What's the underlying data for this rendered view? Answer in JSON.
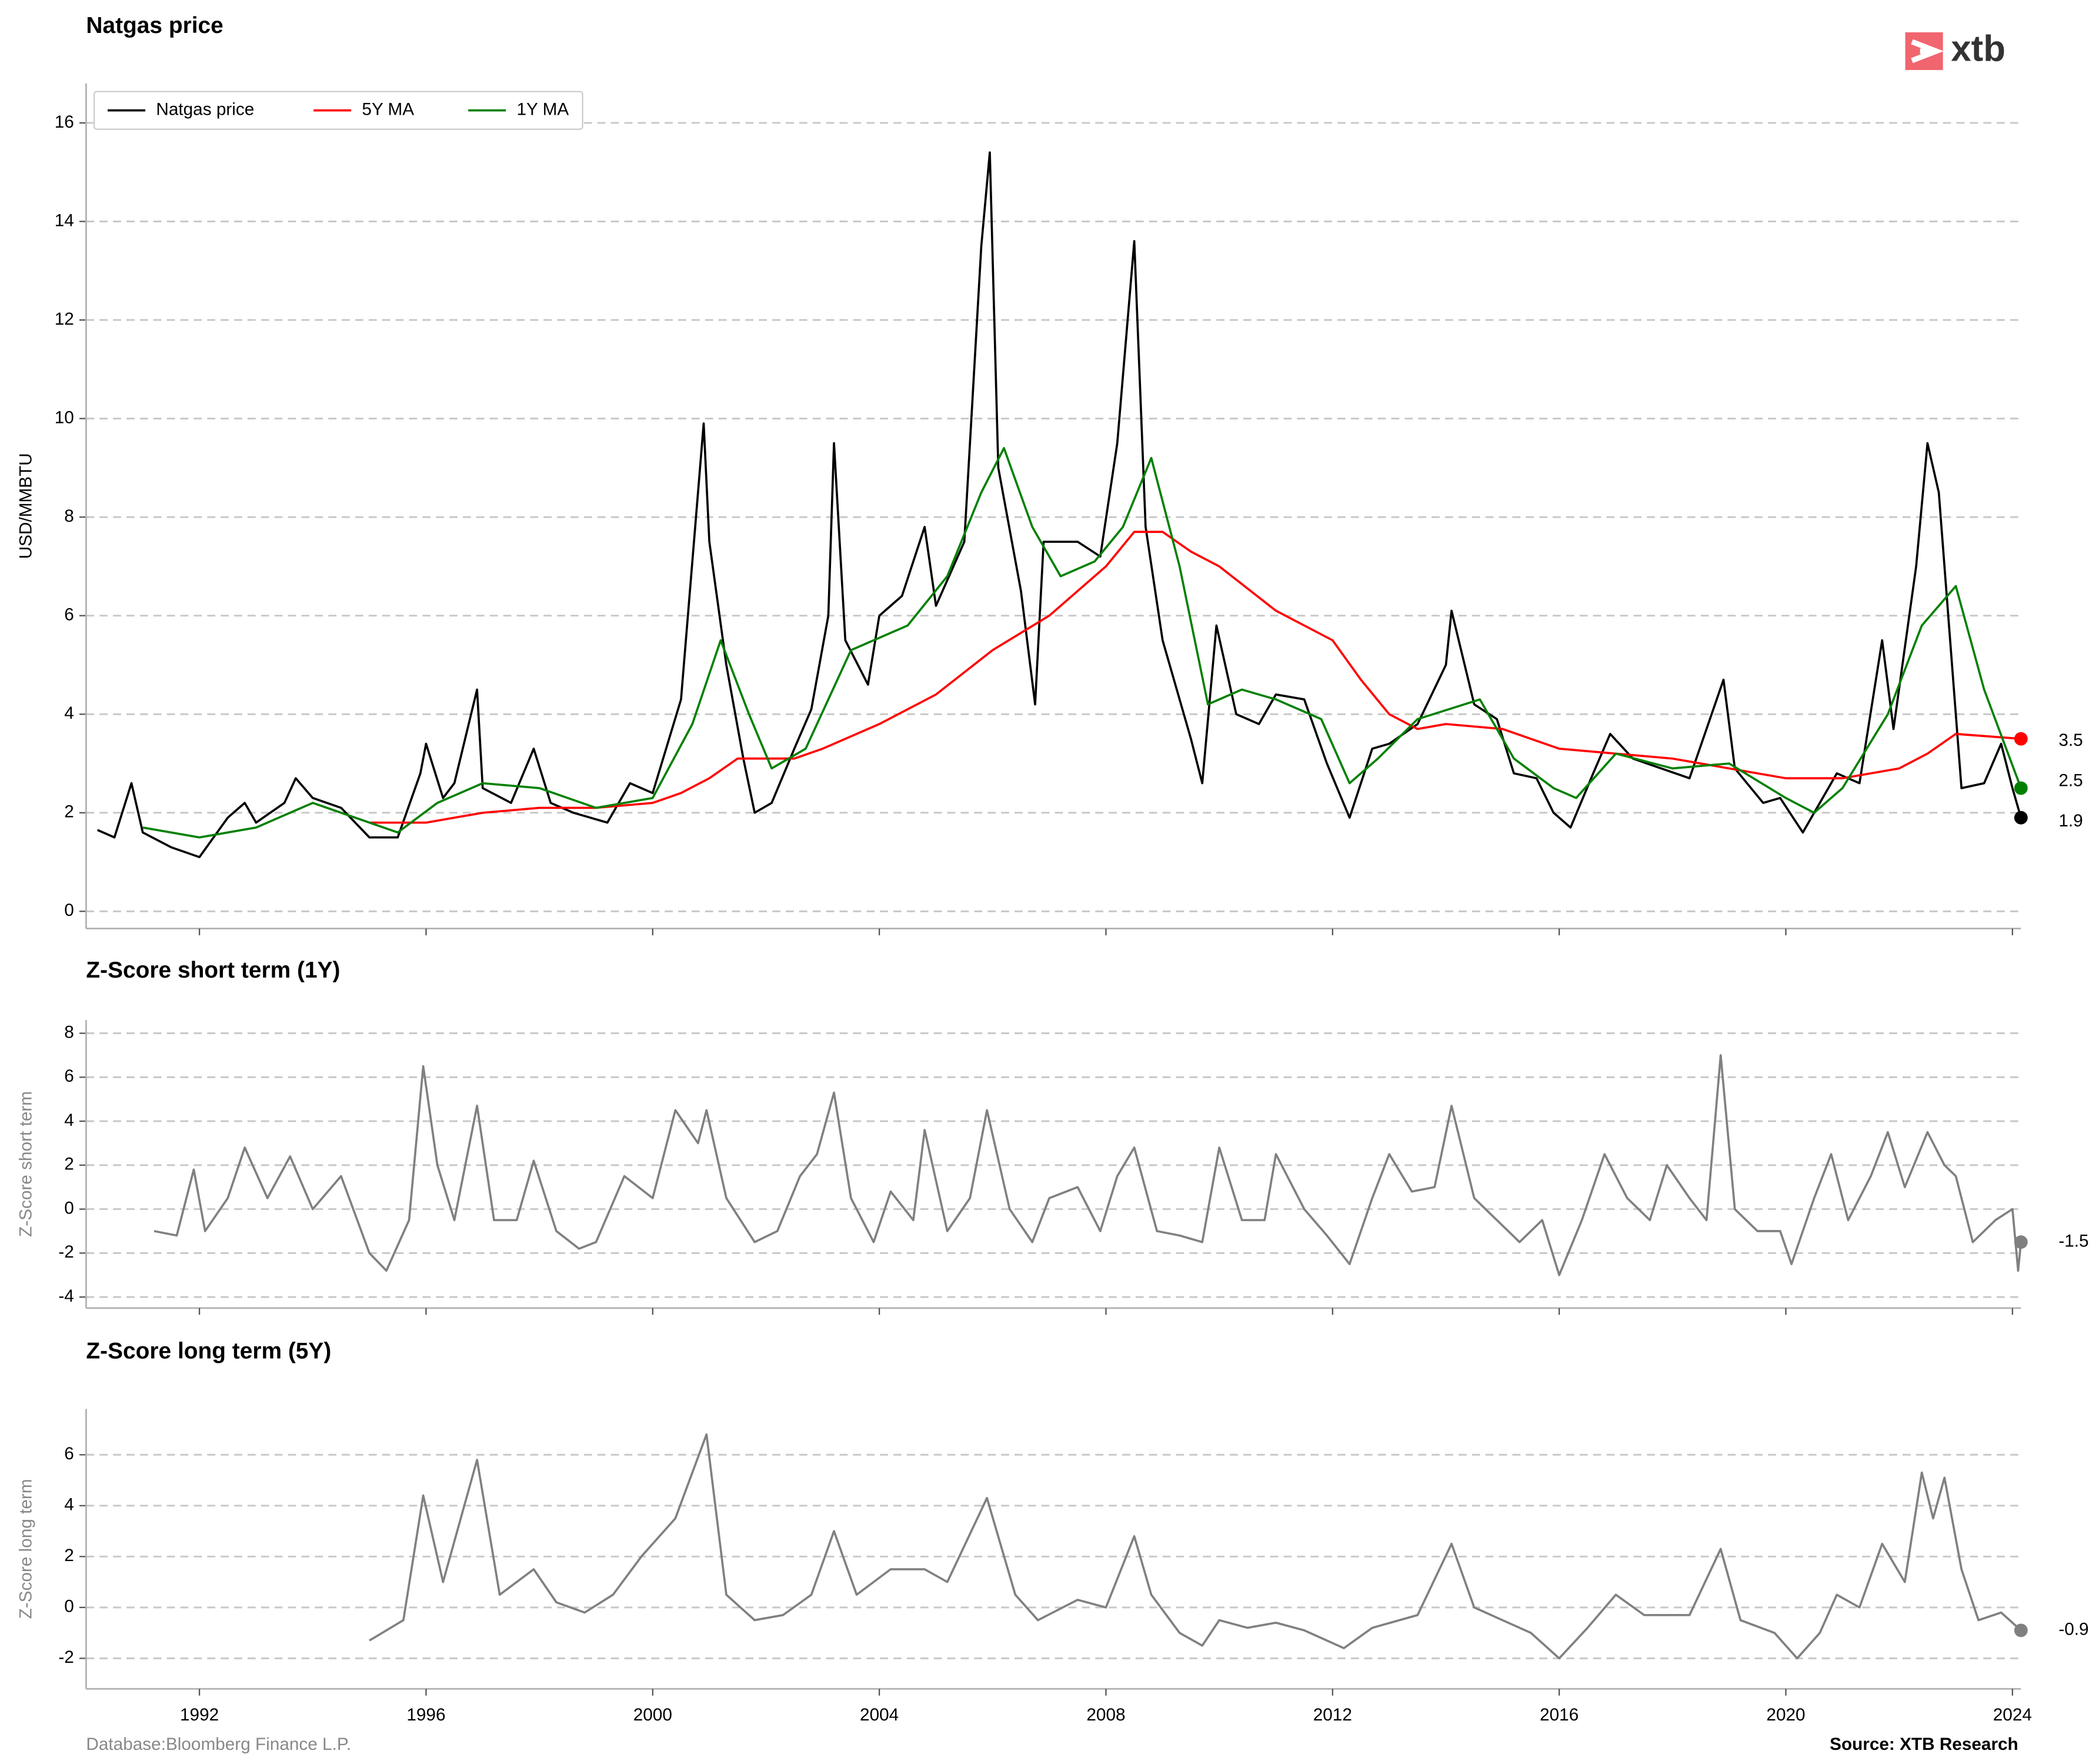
{
  "chart_data": [
    {
      "type": "line",
      "title": "Natgas price",
      "ylabel": "USD/MMBTU",
      "xlim": [
        1990,
        2024.15
      ],
      "xticks": [
        1992,
        1996,
        2000,
        2004,
        2008,
        2012,
        2016,
        2020,
        2024
      ],
      "ylim": [
        -0.35,
        16.8
      ],
      "yticks": [
        0,
        2,
        4,
        6,
        8,
        10,
        12,
        14,
        16
      ],
      "grid": true,
      "legend": "upper left",
      "series": [
        {
          "name": "Natgas price",
          "color": "#000000",
          "end_label": "1.9",
          "x": [
            1990.2,
            1990.5,
            1990.8,
            1991.0,
            1991.5,
            1992.0,
            1992.5,
            1992.8,
            1993.0,
            1993.5,
            1993.7,
            1994.0,
            1994.5,
            1995.0,
            1995.5,
            1995.9,
            1996.0,
            1996.3,
            1996.5,
            1996.9,
            1997.0,
            1997.5,
            1997.9,
            1998.2,
            1998.6,
            1998.9,
            1999.2,
            1999.6,
            2000.0,
            2000.5,
            2000.9,
            2001.0,
            2001.3,
            2001.6,
            2001.8,
            2002.1,
            2002.5,
            2002.8,
            2003.1,
            2003.2,
            2003.4,
            2003.8,
            2004.0,
            2004.4,
            2004.8,
            2005.0,
            2005.5,
            2005.8,
            2005.95,
            2006.1,
            2006.5,
            2006.75,
            2006.9,
            2007.5,
            2007.9,
            2008.2,
            2008.5,
            2008.7,
            2009.0,
            2009.5,
            2009.7,
            2009.95,
            2010.3,
            2010.7,
            2011.0,
            2011.5,
            2011.9,
            2012.3,
            2012.7,
            2013.0,
            2013.5,
            2014.0,
            2014.1,
            2014.5,
            2014.9,
            2015.2,
            2015.6,
            2015.9,
            2016.2,
            2016.6,
            2016.9,
            2017.3,
            2017.8,
            2018.3,
            2018.9,
            2019.1,
            2019.6,
            2019.9,
            2020.3,
            2020.7,
            2020.9,
            2021.3,
            2021.7,
            2021.9,
            2022.3,
            2022.5,
            2022.7,
            2022.9,
            2023.1,
            2023.5,
            2023.8,
            2024.0,
            2024.15
          ],
          "values": [
            1.65,
            1.5,
            2.6,
            1.6,
            1.3,
            1.1,
            1.9,
            2.2,
            1.8,
            2.2,
            2.7,
            2.3,
            2.1,
            1.5,
            1.5,
            2.8,
            3.4,
            2.3,
            2.6,
            4.5,
            2.5,
            2.2,
            3.3,
            2.2,
            2.0,
            1.9,
            1.8,
            2.6,
            2.4,
            4.3,
            9.9,
            7.5,
            5.0,
            3.1,
            2.0,
            2.2,
            3.3,
            4.1,
            6.0,
            9.5,
            5.5,
            4.6,
            6.0,
            6.4,
            7.8,
            6.2,
            7.5,
            13.5,
            15.4,
            9.0,
            6.5,
            4.2,
            7.5,
            7.5,
            7.2,
            9.5,
            13.6,
            7.8,
            5.5,
            3.5,
            2.6,
            5.8,
            4.0,
            3.8,
            4.4,
            4.3,
            3.0,
            1.9,
            3.3,
            3.4,
            3.8,
            5.0,
            6.1,
            4.2,
            3.9,
            2.8,
            2.7,
            2.0,
            1.7,
            2.8,
            3.6,
            3.1,
            2.9,
            2.7,
            4.7,
            2.9,
            2.2,
            2.3,
            1.6,
            2.4,
            2.8,
            2.6,
            5.5,
            3.7,
            7.0,
            9.5,
            8.5,
            5.5,
            2.5,
            2.6,
            3.4,
            2.5,
            1.9
          ]
        },
        {
          "name": "5Y MA",
          "color": "#ff0000",
          "end_label": "3.5",
          "x": [
            1995.0,
            1996.0,
            1997.0,
            1998.0,
            1999.0,
            2000.0,
            2000.5,
            2001.0,
            2001.5,
            2002.5,
            2003.0,
            2004.0,
            2005.0,
            2006.0,
            2007.0,
            2008.0,
            2008.5,
            2009.0,
            2009.5,
            2010.0,
            2011.0,
            2012.0,
            2012.5,
            2013.0,
            2013.5,
            2014.0,
            2015.0,
            2016.0,
            2017.0,
            2018.0,
            2019.0,
            2020.0,
            2021.0,
            2022.0,
            2022.5,
            2023.0,
            2024.15
          ],
          "values": [
            1.8,
            1.8,
            2.0,
            2.1,
            2.1,
            2.2,
            2.4,
            2.7,
            3.1,
            3.1,
            3.3,
            3.8,
            4.4,
            5.3,
            6.0,
            7.0,
            7.7,
            7.7,
            7.3,
            7.0,
            6.1,
            5.5,
            4.7,
            4.0,
            3.7,
            3.8,
            3.7,
            3.3,
            3.2,
            3.1,
            2.9,
            2.7,
            2.7,
            2.9,
            3.2,
            3.6,
            3.5
          ]
        },
        {
          "name": "1Y MA",
          "color": "#008000",
          "end_label": "2.5",
          "x": [
            1991.0,
            1992.0,
            1993.0,
            1994.0,
            1995.0,
            1995.5,
            1996.2,
            1997.0,
            1998.0,
            1999.0,
            2000.0,
            2000.7,
            2001.2,
            2001.7,
            2002.1,
            2002.7,
            2003.5,
            2004.5,
            2005.2,
            2005.8,
            2006.2,
            2006.7,
            2007.2,
            2007.8,
            2008.3,
            2008.8,
            2009.3,
            2009.8,
            2010.4,
            2011.0,
            2011.8,
            2012.3,
            2012.8,
            2013.5,
            2014.6,
            2015.2,
            2015.9,
            2016.3,
            2017.0,
            2018.0,
            2019.0,
            2020.0,
            2020.5,
            2021.0,
            2021.8,
            2022.4,
            2023.0,
            2023.5,
            2024.15
          ],
          "values": [
            1.7,
            1.5,
            1.7,
            2.2,
            1.8,
            1.6,
            2.2,
            2.6,
            2.5,
            2.1,
            2.3,
            3.8,
            5.5,
            4.0,
            2.9,
            3.3,
            5.3,
            5.8,
            6.8,
            8.5,
            9.4,
            7.8,
            6.8,
            7.1,
            7.8,
            9.2,
            7.0,
            4.2,
            4.5,
            4.3,
            3.9,
            2.6,
            3.1,
            3.9,
            4.3,
            3.1,
            2.5,
            2.3,
            3.2,
            2.9,
            3.0,
            2.3,
            2.0,
            2.5,
            4.0,
            5.8,
            6.6,
            4.5,
            2.5
          ]
        }
      ]
    },
    {
      "type": "line",
      "title": "Z-Score short term (1Y)",
      "ylabel": "Z-Score short term",
      "xlim": [
        1990,
        2024.15
      ],
      "xticks": [
        1992,
        1996,
        2000,
        2004,
        2008,
        2012,
        2016,
        2020,
        2024
      ],
      "ylim": [
        -4.5,
        8.6
      ],
      "yticks": [
        -4,
        -2,
        0,
        2,
        4,
        6,
        8
      ],
      "grid": true,
      "series": [
        {
          "color": "#808080",
          "end_label": "-1.5",
          "x": [
            1991.2,
            1991.6,
            1991.9,
            1992.1,
            1992.5,
            1992.8,
            1993.2,
            1993.6,
            1994.0,
            1994.5,
            1995.0,
            1995.3,
            1995.7,
            1995.95,
            1996.2,
            1996.5,
            1996.9,
            1997.2,
            1997.6,
            1997.9,
            1998.3,
            1998.7,
            1999.0,
            1999.5,
            2000.0,
            2000.4,
            2000.8,
            2000.95,
            2001.3,
            2001.8,
            2002.2,
            2002.6,
            2002.9,
            2003.2,
            2003.5,
            2003.9,
            2004.2,
            2004.6,
            2004.8,
            2005.2,
            2005.6,
            2005.9,
            2006.3,
            2006.7,
            2007.0,
            2007.5,
            2007.9,
            2008.2,
            2008.5,
            2008.9,
            2009.3,
            2009.7,
            2010.0,
            2010.4,
            2010.8,
            2011.0,
            2011.5,
            2011.9,
            2012.3,
            2012.7,
            2013.0,
            2013.4,
            2013.8,
            2014.1,
            2014.5,
            2014.9,
            2015.3,
            2015.7,
            2016.0,
            2016.4,
            2016.8,
            2017.2,
            2017.6,
            2017.9,
            2018.3,
            2018.6,
            2018.85,
            2019.1,
            2019.5,
            2019.9,
            2020.1,
            2020.5,
            2020.8,
            2021.1,
            2021.5,
            2021.8,
            2022.1,
            2022.5,
            2022.8,
            2023.0,
            2023.3,
            2023.7,
            2024.0,
            2024.1,
            2024.15
          ],
          "values": [
            -1.0,
            -1.2,
            1.8,
            -1.0,
            0.5,
            2.8,
            0.5,
            2.4,
            0.0,
            1.5,
            -2.0,
            -2.8,
            -0.5,
            6.5,
            2.0,
            -0.5,
            4.7,
            -0.5,
            -0.5,
            2.2,
            -1.0,
            -1.8,
            -1.5,
            1.5,
            0.5,
            4.5,
            3.0,
            4.5,
            0.5,
            -1.5,
            -1.0,
            1.5,
            2.5,
            5.3,
            0.5,
            -1.5,
            0.8,
            -0.5,
            3.6,
            -1.0,
            0.5,
            4.5,
            0.0,
            -1.5,
            0.5,
            1.0,
            -1.0,
            1.5,
            2.8,
            -1.0,
            -1.2,
            -1.5,
            2.8,
            -0.5,
            -0.5,
            2.5,
            0.0,
            -1.2,
            -2.5,
            0.5,
            2.5,
            0.8,
            1.0,
            4.7,
            0.5,
            -0.5,
            -1.5,
            -0.5,
            -3.0,
            -0.5,
            2.5,
            0.5,
            -0.5,
            2.0,
            0.5,
            -0.5,
            7.0,
            0.0,
            -1.0,
            -1.0,
            -2.5,
            0.5,
            2.5,
            -0.5,
            1.5,
            3.5,
            1.0,
            3.5,
            2.0,
            1.5,
            -1.5,
            -0.5,
            0.0,
            -2.8,
            -1.5
          ]
        }
      ]
    },
    {
      "type": "line",
      "title": "Z-Score long term (5Y)",
      "ylabel": "Z-Score long term",
      "xlim": [
        1990,
        2024.15
      ],
      "xticks": [
        1992,
        1996,
        2000,
        2004,
        2008,
        2012,
        2016,
        2020,
        2024
      ],
      "ylim": [
        -3.2,
        7.8
      ],
      "yticks": [
        -2,
        0,
        2,
        4,
        6
      ],
      "grid": true,
      "series": [
        {
          "color": "#808080",
          "end_label": "-0.9",
          "x": [
            1995.0,
            1995.6,
            1995.95,
            1996.3,
            1996.9,
            1997.3,
            1997.9,
            1998.3,
            1998.8,
            1999.3,
            1999.8,
            2000.4,
            2000.95,
            2001.3,
            2001.8,
            2002.3,
            2002.8,
            2003.2,
            2003.6,
            2004.2,
            2004.8,
            2005.2,
            2005.9,
            2006.4,
            2006.8,
            2007.5,
            2008.0,
            2008.5,
            2008.8,
            2009.3,
            2009.7,
            2010.0,
            2010.5,
            2011.0,
            2011.5,
            2012.2,
            2012.7,
            2013.5,
            2014.1,
            2014.5,
            2015.0,
            2015.5,
            2016.0,
            2016.5,
            2017.0,
            2017.5,
            2018.3,
            2018.85,
            2019.2,
            2019.8,
            2020.2,
            2020.6,
            2020.9,
            2021.3,
            2021.7,
            2022.1,
            2022.4,
            2022.6,
            2022.8,
            2023.1,
            2023.4,
            2023.8,
            2024.15
          ],
          "values": [
            -1.3,
            -0.5,
            4.4,
            1.0,
            5.8,
            0.5,
            1.5,
            0.2,
            -0.2,
            0.5,
            2.0,
            3.5,
            6.8,
            0.5,
            -0.5,
            -0.3,
            0.5,
            3.0,
            0.5,
            1.5,
            1.5,
            1.0,
            4.3,
            0.5,
            -0.5,
            0.3,
            0.0,
            2.8,
            0.5,
            -1.0,
            -1.5,
            -0.5,
            -0.8,
            -0.6,
            -0.9,
            -1.6,
            -0.8,
            -0.3,
            2.5,
            0.0,
            -0.5,
            -1.0,
            -2.0,
            -0.8,
            0.5,
            -0.3,
            -0.3,
            2.3,
            -0.5,
            -1.0,
            -2.0,
            -1.0,
            0.5,
            0.0,
            2.5,
            1.0,
            5.3,
            3.5,
            5.1,
            1.5,
            -0.5,
            -0.2,
            -0.9
          ]
        }
      ]
    }
  ],
  "logo": "xtb",
  "footer": {
    "database": "Database:Bloomberg Finance L.P.",
    "source": "Source: XTB Research"
  }
}
